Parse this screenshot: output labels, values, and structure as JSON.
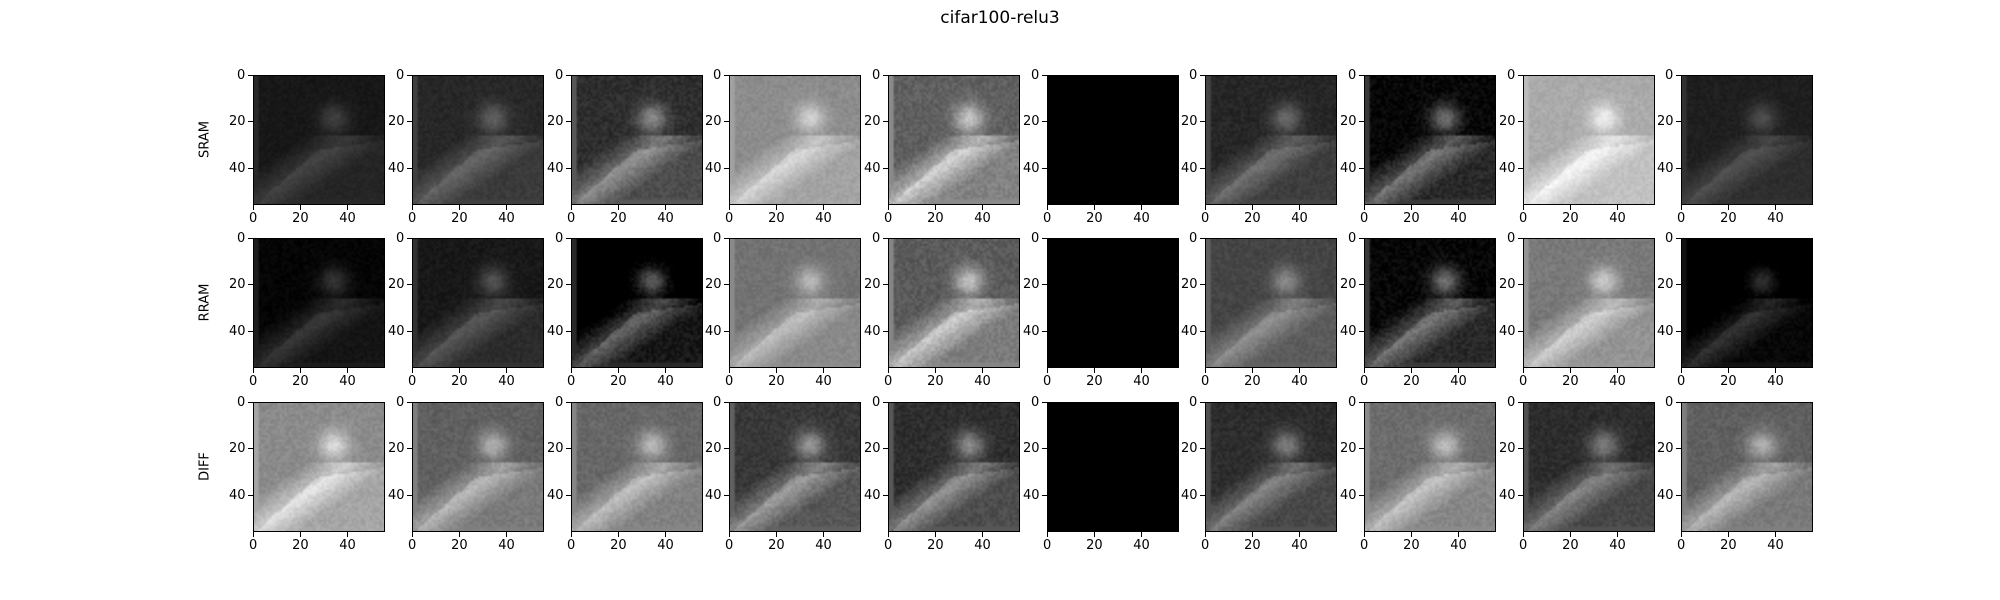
{
  "chart_data": {
    "type": "image-grid",
    "title": "cifar100-relu3",
    "row_labels": [
      "SRAM",
      "RRAM",
      "DIFF"
    ],
    "columns": 10,
    "image_size": [
      56,
      56
    ],
    "x_ticks": [
      "0",
      "20",
      "40"
    ],
    "y_ticks": [
      "0",
      "20",
      "40"
    ],
    "colormap": "gray",
    "panels": [
      [
        {
          "brightness": 0.18,
          "contrast": 0.35,
          "blank": false
        },
        {
          "brightness": 0.28,
          "contrast": 0.5,
          "blank": false
        },
        {
          "brightness": 0.38,
          "contrast": 0.8,
          "blank": false
        },
        {
          "brightness": 0.7,
          "contrast": 0.6,
          "blank": false
        },
        {
          "brightness": 0.6,
          "contrast": 0.9,
          "blank": false
        },
        {
          "brightness": 0.0,
          "contrast": 0.0,
          "blank": true
        },
        {
          "brightness": 0.3,
          "contrast": 0.6,
          "blank": false
        },
        {
          "brightness": 0.25,
          "contrast": 0.9,
          "blank": false
        },
        {
          "brightness": 0.82,
          "contrast": 0.6,
          "blank": false
        },
        {
          "brightness": 0.22,
          "contrast": 0.4,
          "blank": false
        }
      ],
      [
        {
          "brightness": 0.12,
          "contrast": 0.4,
          "blank": false
        },
        {
          "brightness": 0.22,
          "contrast": 0.5,
          "blank": false
        },
        {
          "brightness": 0.18,
          "contrast": 0.9,
          "blank": false
        },
        {
          "brightness": 0.6,
          "contrast": 0.6,
          "blank": false
        },
        {
          "brightness": 0.58,
          "contrast": 0.9,
          "blank": false
        },
        {
          "brightness": 0.0,
          "contrast": 0.0,
          "blank": true
        },
        {
          "brightness": 0.42,
          "contrast": 0.6,
          "blank": false
        },
        {
          "brightness": 0.25,
          "contrast": 0.9,
          "blank": false
        },
        {
          "brightness": 0.65,
          "contrast": 0.7,
          "blank": false
        },
        {
          "brightness": 0.08,
          "contrast": 0.5,
          "blank": false
        }
      ],
      [
        {
          "brightness": 0.72,
          "contrast": 0.7,
          "blank": false
        },
        {
          "brightness": 0.55,
          "contrast": 0.7,
          "blank": false
        },
        {
          "brightness": 0.58,
          "contrast": 0.7,
          "blank": false
        },
        {
          "brightness": 0.42,
          "contrast": 0.8,
          "blank": false
        },
        {
          "brightness": 0.38,
          "contrast": 0.8,
          "blank": false
        },
        {
          "brightness": 0.0,
          "contrast": 0.0,
          "blank": true
        },
        {
          "brightness": 0.35,
          "contrast": 0.7,
          "blank": false
        },
        {
          "brightness": 0.6,
          "contrast": 0.7,
          "blank": false
        },
        {
          "brightness": 0.35,
          "contrast": 0.7,
          "blank": false
        },
        {
          "brightness": 0.55,
          "contrast": 0.7,
          "blank": false
        }
      ]
    ]
  }
}
